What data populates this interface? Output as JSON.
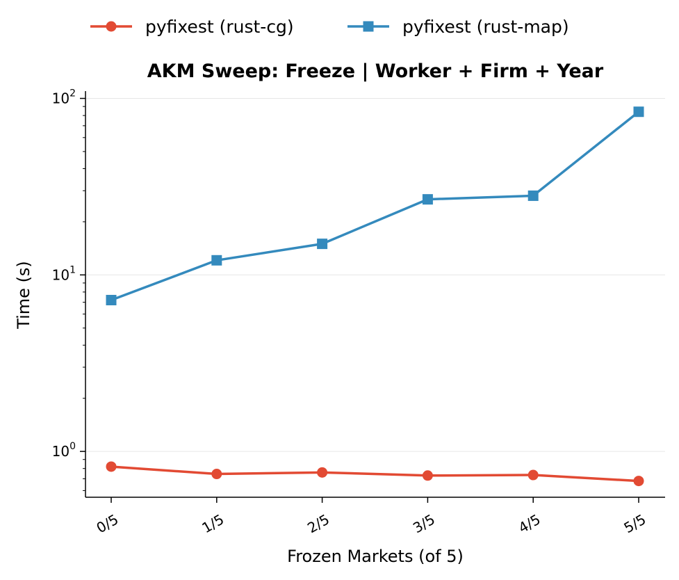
{
  "chart_data": {
    "type": "line",
    "title": "AKM Sweep: Freeze  |  Worker + Firm + Year",
    "xlabel": "Frozen Markets (of 5)",
    "ylabel": "Time (s)",
    "yscale": "log",
    "ylim": [
      0.55,
      110
    ],
    "y_ticks": [
      {
        "value": 1,
        "base": "10",
        "exp": "0"
      },
      {
        "value": 10,
        "base": "10",
        "exp": "1"
      },
      {
        "value": 100,
        "base": "10",
        "exp": "2"
      }
    ],
    "categories": [
      "0/5",
      "1/5",
      "2/5",
      "3/5",
      "4/5",
      "5/5"
    ],
    "grid": "horizontal",
    "legend_position": "top",
    "series": [
      {
        "name": "pyfixest (rust-cg)",
        "color": "#e24a33",
        "marker": "circle",
        "values": [
          0.82,
          0.745,
          0.76,
          0.73,
          0.735,
          0.68
        ]
      },
      {
        "name": "pyfixest (rust-map)",
        "color": "#348abd",
        "marker": "square",
        "values": [
          7.2,
          12.1,
          15.0,
          26.8,
          28.1,
          84.0
        ]
      }
    ]
  }
}
